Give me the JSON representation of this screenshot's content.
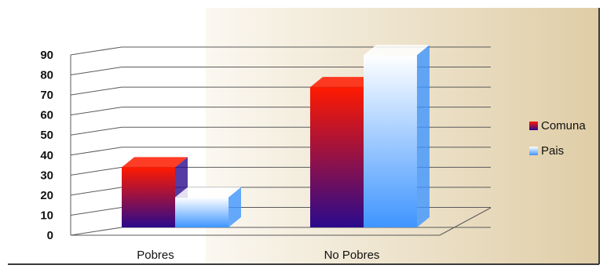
{
  "chart_data": {
    "type": "bar",
    "style": "3d-clustered-column",
    "title": "",
    "xlabel": "",
    "ylabel": "",
    "categories": [
      "Pobres",
      "No Pobres"
    ],
    "series": [
      {
        "name": "Comuna",
        "values": [
          30,
          70
        ],
        "color_top": "#ff1a00",
        "color_bottom": "#2a0a8c"
      },
      {
        "name": "Pais",
        "values": [
          15,
          86
        ],
        "color_top": "#ffffff",
        "color_bottom": "#3f95ff"
      }
    ],
    "ylim": [
      0,
      90
    ],
    "yticks": [
      0,
      10,
      20,
      30,
      40,
      50,
      60,
      70,
      80,
      90
    ],
    "grid": true,
    "legend_position": "right",
    "colors": {
      "background_left": "#ffffff",
      "background_right": "#e6d6b4",
      "border": "#3a3a3a"
    }
  }
}
